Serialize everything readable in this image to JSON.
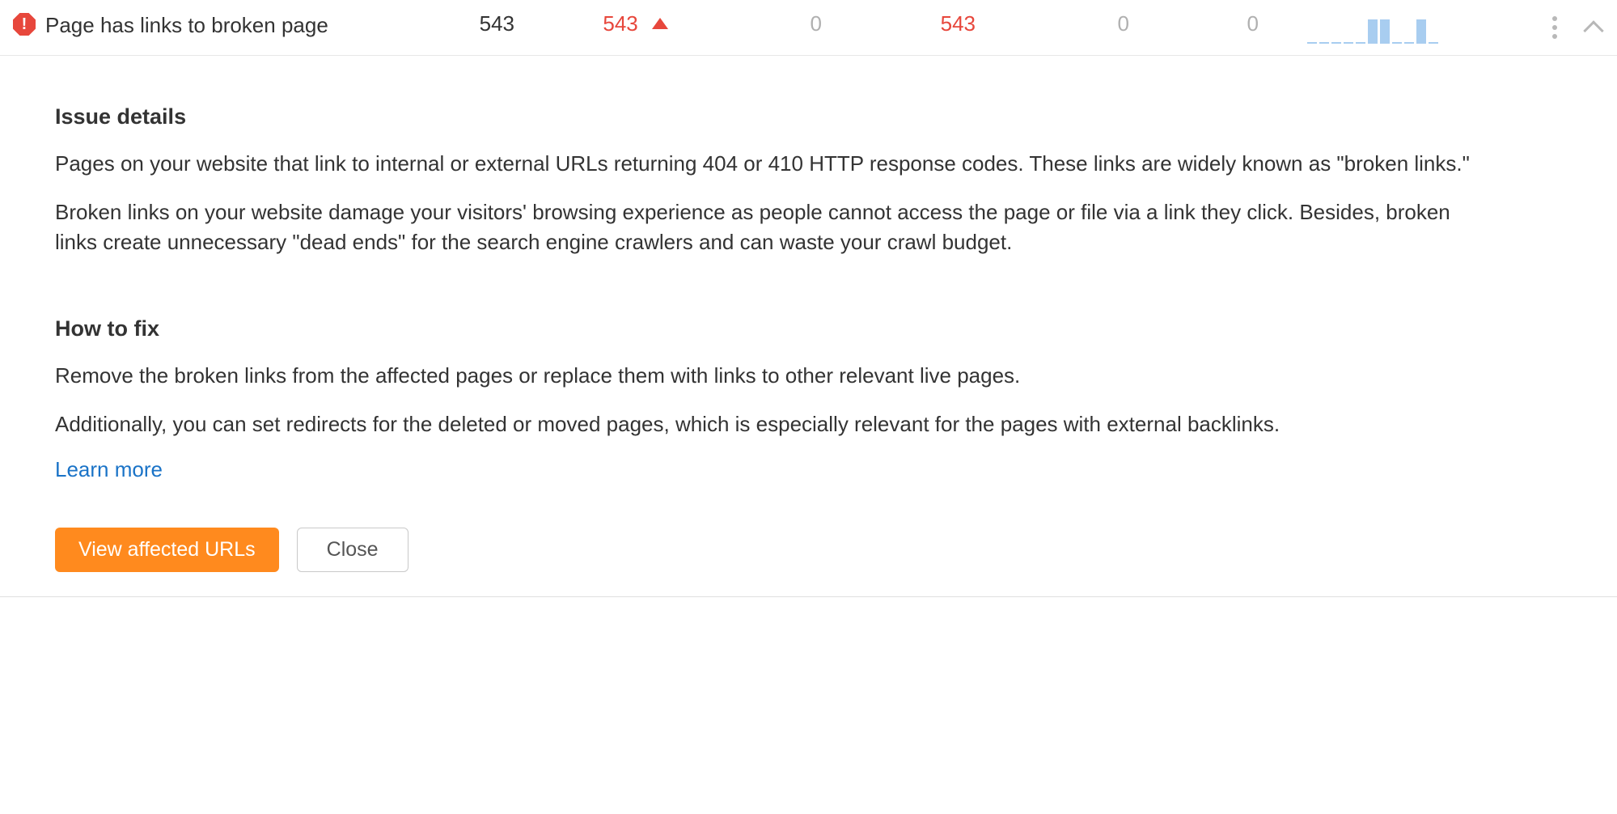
{
  "row": {
    "issue_name": "Page has links to broken page",
    "col1": "543",
    "col2": "543",
    "col3": "0",
    "col4": "543",
    "col5": "0",
    "col6": "0",
    "sparkline": {
      "bar_color": "#a8cdf0",
      "bars": [
        2,
        2,
        2,
        2,
        2,
        30,
        30,
        2,
        2,
        30,
        2
      ]
    }
  },
  "details": {
    "heading": "Issue details",
    "para1": "Pages on your website that link to internal or external URLs returning 404 or 410 HTTP response codes. These links are widely known as \"broken links.\"",
    "para2": "Broken links on your website damage your visitors' browsing experience as people cannot access the page or file via a link they click. Besides, broken links create unnecessary \"dead ends\" for the search engine crawlers and can waste your crawl budget.",
    "fix_heading": "How to fix",
    "fix_para1": "Remove the broken links from the affected pages or replace them with links to other relevant live pages.",
    "fix_para2": "Additionally, you can set redirects for the deleted or moved pages, which is especially relevant for the pages with external backlinks.",
    "learn_more": "Learn more",
    "primary_button": "View affected URLs",
    "secondary_button": "Close"
  },
  "colors": {
    "error": "#e7473c",
    "accent": "#ff8a1e",
    "link": "#1a73c7",
    "muted": "#b0b0b0"
  }
}
